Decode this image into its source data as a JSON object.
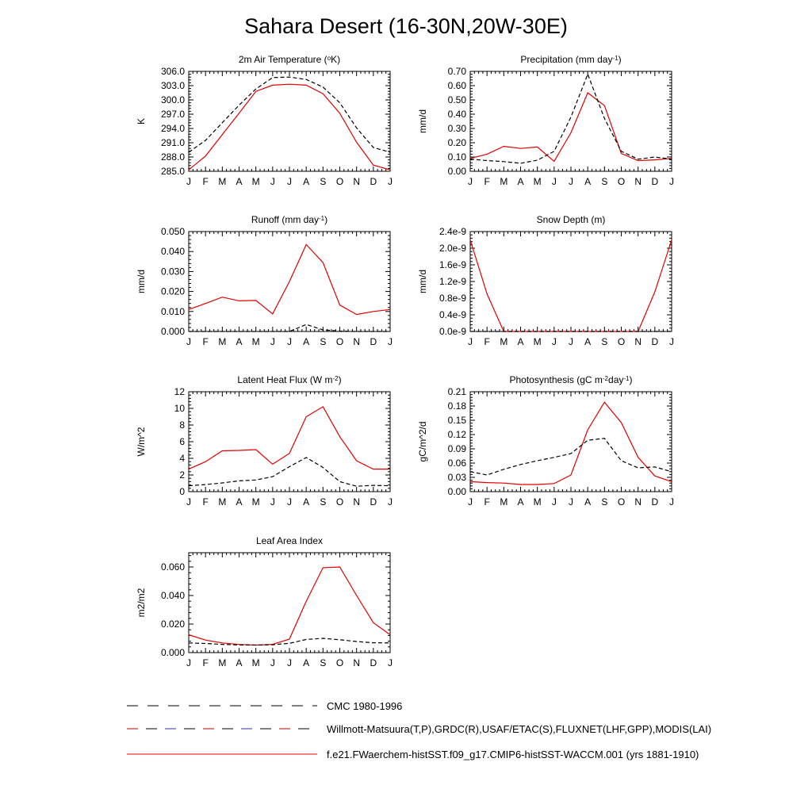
{
  "title": "Sahara Desert (16-30N,20W-30E)",
  "colors": {
    "model": "#e00000",
    "obs": "#000000"
  },
  "months": [
    "J",
    "F",
    "M",
    "A",
    "M",
    "J",
    "J",
    "A",
    "S",
    "O",
    "N",
    "D",
    "J"
  ],
  "legend": [
    {
      "label": "CMC 1980-1996",
      "style": "dash-black"
    },
    {
      "label": "Willmott-Matsuura(T,P),GRDC(R),USAF/ETAC(S),FLUXNET(LHF,GPP),MODIS(LAI)",
      "style": "dash-mixed"
    },
    {
      "label": "f.e21.FWaerchem-histSST.f09_g17.CMIP6-histSST-WACCM.001 (yrs 1881-1910)",
      "style": "solid-red"
    }
  ],
  "chart_data": [
    {
      "type": "line",
      "title": "2m Air Temperature (°K)",
      "title_parts": [
        "2m Air Temperature (",
        "o",
        "K)"
      ],
      "ylabel": "K",
      "ylim": [
        285.0,
        306.0
      ],
      "yticks": [
        "285.0",
        "288.0",
        "291.0",
        "294.0",
        "297.0",
        "300.0",
        "303.0",
        "306.0"
      ],
      "series": [
        {
          "role": "model",
          "values": [
            285.3,
            288.2,
            292.7,
            297.2,
            301.8,
            303.1,
            303.3,
            303.1,
            301.3,
            297.2,
            291.1,
            286.3,
            285.3
          ]
        },
        {
          "role": "obs",
          "values": [
            289.0,
            291.5,
            295.2,
            298.9,
            302.3,
            304.7,
            304.8,
            304.3,
            302.7,
            299.4,
            294.1,
            290.0,
            289.0
          ]
        }
      ]
    },
    {
      "type": "line",
      "title": "Precipitation (mm day-1)",
      "title_parts": [
        "Precipitation (mm day",
        "-1",
        ")"
      ],
      "ylabel": "mm/d",
      "ylim": [
        0.0,
        0.7
      ],
      "yticks": [
        "0.00",
        "0.10",
        "0.20",
        "0.30",
        "0.40",
        "0.50",
        "0.60",
        "0.70"
      ],
      "series": [
        {
          "role": "model",
          "values": [
            0.09,
            0.12,
            0.175,
            0.16,
            0.17,
            0.07,
            0.27,
            0.55,
            0.46,
            0.125,
            0.075,
            0.08,
            0.09
          ]
        },
        {
          "role": "obs",
          "values": [
            0.085,
            0.075,
            0.068,
            0.056,
            0.078,
            0.14,
            0.38,
            0.68,
            0.37,
            0.14,
            0.085,
            0.1,
            0.085
          ]
        }
      ]
    },
    {
      "type": "line",
      "title": "Runoff (mm day-1)",
      "title_parts": [
        "Runoff (mm day",
        "-1",
        ")"
      ],
      "ylabel": "mm/d",
      "ylim": [
        0.0,
        0.05
      ],
      "yticks": [
        "0.000",
        "0.010",
        "0.020",
        "0.030",
        "0.040",
        "0.050"
      ],
      "series": [
        {
          "role": "model",
          "values": [
            0.011,
            0.014,
            0.0172,
            0.0153,
            0.0155,
            0.0088,
            0.025,
            0.0435,
            0.0345,
            0.0132,
            0.0085,
            0.01,
            0.011
          ]
        },
        {
          "role": "obs",
          "values": [
            0.0,
            0.0,
            0.0,
            0.0,
            0.0,
            0.0,
            0.0,
            0.0035,
            0.0008,
            0.0002,
            0.0,
            0.0,
            0.0
          ]
        }
      ]
    },
    {
      "type": "line",
      "title": "Snow Depth (m)",
      "title_parts": [
        "Snow Depth (m)"
      ],
      "ylabel": "mm/d",
      "ylim": [
        0.0,
        2.4e-09
      ],
      "yticks": [
        "0.0e-9",
        "0.4e-9",
        "0.8e-9",
        "1.2e-9",
        "1.6e-9",
        "2.0e-9",
        "2.4e-9"
      ],
      "series": [
        {
          "role": "model",
          "values": [
            2.2e-09,
            9e-10,
            0,
            0,
            0,
            0,
            0,
            0,
            0,
            0,
            0,
            9.5e-10,
            2.2e-09
          ]
        },
        {
          "role": "obs",
          "values": [
            0,
            0,
            0,
            0,
            0,
            0,
            0,
            0,
            0,
            0,
            0,
            0,
            0
          ]
        }
      ]
    },
    {
      "type": "line",
      "title": "Latent Heat Flux (W m-2)",
      "title_parts": [
        "Latent Heat Flux (W m",
        "-2",
        ")"
      ],
      "ylabel": "W/m^2",
      "ylim": [
        0,
        12
      ],
      "yticks": [
        "0",
        "2",
        "4",
        "6",
        "8",
        "10",
        "12"
      ],
      "series": [
        {
          "role": "model",
          "values": [
            2.7,
            3.6,
            4.9,
            4.95,
            5.05,
            3.3,
            4.6,
            9.0,
            10.2,
            6.6,
            3.7,
            2.7,
            2.7
          ]
        },
        {
          "role": "obs",
          "values": [
            0.7,
            0.85,
            1.05,
            1.3,
            1.4,
            1.8,
            3.0,
            4.1,
            2.9,
            1.2,
            0.65,
            0.75,
            0.7
          ]
        }
      ]
    },
    {
      "type": "line",
      "title": "Photosynthesis (gC m-2day-1)",
      "title_parts": [
        "Photosynthesis (gC m",
        "-2",
        "day",
        "-1",
        ")"
      ],
      "ylabel": "gC/m^2/d",
      "ylim": [
        0.0,
        0.21
      ],
      "yticks": [
        "0.00",
        "0.03",
        "0.06",
        "0.09",
        "0.12",
        "0.15",
        "0.18",
        "0.21"
      ],
      "series": [
        {
          "role": "model",
          "values": [
            0.021,
            0.019,
            0.018,
            0.015,
            0.015,
            0.017,
            0.035,
            0.13,
            0.188,
            0.145,
            0.072,
            0.033,
            0.021
          ]
        },
        {
          "role": "obs",
          "values": [
            0.042,
            0.035,
            0.047,
            0.057,
            0.065,
            0.072,
            0.08,
            0.108,
            0.112,
            0.065,
            0.05,
            0.052,
            0.042
          ]
        }
      ]
    },
    {
      "type": "line",
      "title": "Leaf Area Index",
      "title_parts": [
        "Leaf Area Index"
      ],
      "ylabel": "m2/m2",
      "ylim": [
        0.0,
        0.07
      ],
      "yticks": [
        "0.000",
        "0.020",
        "0.040",
        "0.060"
      ],
      "ytick_values": [
        0,
        0.02,
        0.04,
        0.06
      ],
      "series": [
        {
          "role": "model",
          "values": [
            0.0125,
            0.0088,
            0.0068,
            0.0057,
            0.0053,
            0.0058,
            0.0095,
            0.036,
            0.0595,
            0.06,
            0.04,
            0.021,
            0.0125
          ]
        },
        {
          "role": "obs",
          "values": [
            0.0068,
            0.0064,
            0.0058,
            0.0054,
            0.0053,
            0.0055,
            0.0065,
            0.0092,
            0.01,
            0.009,
            0.0078,
            0.0069,
            0.0068
          ]
        }
      ]
    }
  ]
}
